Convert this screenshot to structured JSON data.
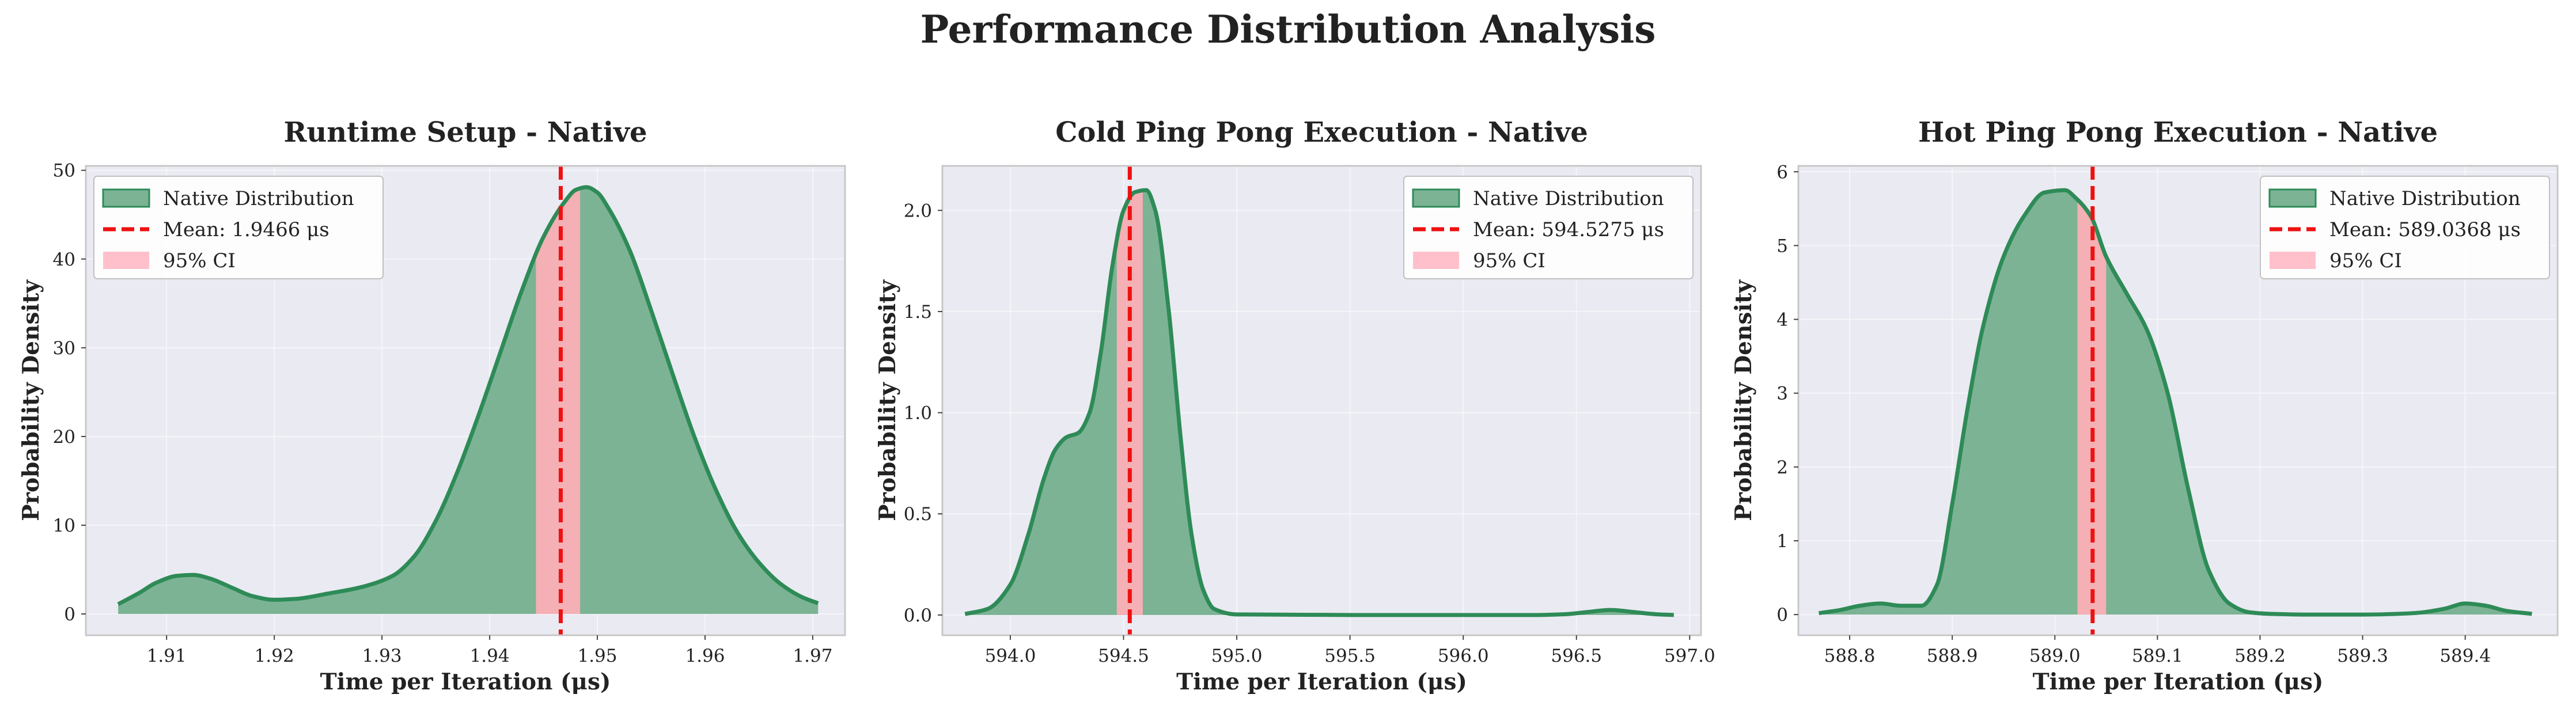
{
  "figure": {
    "title": "Performance Distribution Analysis",
    "colors": {
      "background": "#ffffff",
      "plot_background": "#eaeaf2",
      "grid": "#f5f5fa",
      "frame": "#c8c8c8",
      "text": "#222222",
      "density_fill": "#7cb395",
      "density_line": "#2e8b57",
      "mean_line": "#ee1111",
      "ci_fill": "#f4b0b4",
      "ci_legend": "#ffc0cb",
      "legend_bg": "#ffffff",
      "legend_border": "#c0c0c0"
    }
  },
  "chart_data": [
    {
      "type": "area",
      "title": "Runtime Setup - Native",
      "xlabel": "Time per Iteration (μs)",
      "ylabel": "Probability Density",
      "xlim": [
        1.9025,
        1.973
      ],
      "ylim": [
        -2.4,
        50.5
      ],
      "xticks": [
        1.91,
        1.92,
        1.93,
        1.94,
        1.95,
        1.96,
        1.97
      ],
      "xtick_labels": [
        "1.91",
        "1.92",
        "1.93",
        "1.94",
        "1.95",
        "1.96",
        "1.97"
      ],
      "yticks": [
        0,
        10,
        20,
        30,
        40,
        50
      ],
      "ytick_labels": [
        "0",
        "10",
        "20",
        "30",
        "40",
        "50"
      ],
      "grid": true,
      "legend_position": "upper left",
      "legend": [
        "Native Distribution",
        "Mean: 1.9466 μs",
        "95% CI"
      ],
      "mean": 1.9466,
      "ci": [
        1.9443,
        1.9484
      ],
      "series": [
        {
          "name": "Native Distribution",
          "x": [
            1.9055,
            1.9075,
            1.909,
            1.911,
            1.9125,
            1.914,
            1.916,
            1.918,
            1.92,
            1.922,
            1.925,
            1.928,
            1.931,
            1.933,
            1.935,
            1.937,
            1.939,
            1.941,
            1.943,
            1.945,
            1.947,
            1.948,
            1.949,
            1.95,
            1.951,
            1.953,
            1.955,
            1.957,
            1.959,
            1.961,
            1.963,
            1.965,
            1.967,
            1.969,
            1.9705
          ],
          "y": [
            1.1,
            2.4,
            3.5,
            4.3,
            4.4,
            4.0,
            3.0,
            2.0,
            1.6,
            1.7,
            2.3,
            3.0,
            4.3,
            6.5,
            10.5,
            16.0,
            22.5,
            29.5,
            36.5,
            42.5,
            46.5,
            47.8,
            48.1,
            47.5,
            45.8,
            41.0,
            34.2,
            27.0,
            20.0,
            14.0,
            9.2,
            5.8,
            3.4,
            1.9,
            1.2
          ]
        }
      ]
    },
    {
      "type": "area",
      "title": "Cold Ping Pong Execution - Native",
      "xlabel": "Time per Iteration (μs)",
      "ylabel": "Probability Density",
      "xlim": [
        593.7,
        597.05
      ],
      "ylim": [
        -0.1,
        2.22
      ],
      "xticks": [
        594.0,
        594.5,
        595.0,
        595.5,
        596.0,
        596.5,
        597.0
      ],
      "xtick_labels": [
        "594.0",
        "594.5",
        "595.0",
        "595.5",
        "596.0",
        "596.5",
        "597.0"
      ],
      "yticks": [
        0.0,
        0.5,
        1.0,
        1.5,
        2.0
      ],
      "ytick_labels": [
        "0.0",
        "0.5",
        "1.0",
        "1.5",
        "2.0"
      ],
      "grid": true,
      "legend_position": "upper right",
      "legend": [
        "Native Distribution",
        "Mean: 594.5275 μs",
        "95% CI"
      ],
      "mean": 594.5275,
      "ci": [
        594.47,
        594.585
      ],
      "series": [
        {
          "name": "Native Distribution",
          "x": [
            593.8,
            593.9,
            594.0,
            594.08,
            594.15,
            594.2,
            594.25,
            594.3,
            594.35,
            594.4,
            594.45,
            594.5,
            594.55,
            594.6,
            594.64,
            594.7,
            594.75,
            594.8,
            594.85,
            594.9,
            595.0,
            595.5,
            596.0,
            596.3,
            596.45,
            596.55,
            596.65,
            596.75,
            596.85,
            596.93
          ],
          "y": [
            0.005,
            0.03,
            0.15,
            0.4,
            0.68,
            0.82,
            0.88,
            0.9,
            1.0,
            1.3,
            1.72,
            2.0,
            2.09,
            2.1,
            2.0,
            1.5,
            0.9,
            0.4,
            0.13,
            0.03,
            0.003,
            0.0,
            0.0,
            0.0,
            0.004,
            0.015,
            0.025,
            0.015,
            0.004,
            0.0
          ]
        }
      ]
    },
    {
      "type": "area",
      "title": "Hot Ping Pong Execution - Native",
      "xlabel": "Time per Iteration (μs)",
      "ylabel": "Probability Density",
      "xlim": [
        588.75,
        589.49
      ],
      "ylim": [
        -0.28,
        6.08
      ],
      "xticks": [
        588.8,
        588.9,
        589.0,
        589.1,
        589.2,
        589.3,
        589.4
      ],
      "xtick_labels": [
        "588.8",
        "588.9",
        "589.0",
        "589.1",
        "589.2",
        "589.3",
        "589.4"
      ],
      "yticks": [
        0,
        1,
        2,
        3,
        4,
        5,
        6
      ],
      "ytick_labels": [
        "0",
        "1",
        "2",
        "3",
        "4",
        "5",
        "6"
      ],
      "grid": true,
      "legend_position": "upper right",
      "legend": [
        "Native Distribution",
        "Mean: 589.0368 μs",
        "95% CI"
      ],
      "mean": 589.0368,
      "ci": [
        589.022,
        589.05
      ],
      "series": [
        {
          "name": "Native Distribution",
          "x": [
            588.77,
            588.79,
            588.81,
            588.83,
            588.85,
            588.87,
            588.885,
            588.9,
            588.915,
            588.93,
            588.95,
            588.97,
            588.99,
            589.01,
            589.02,
            589.035,
            589.05,
            589.07,
            589.09,
            589.11,
            589.13,
            589.15,
            589.17,
            589.19,
            589.21,
            589.25,
            589.3,
            589.35,
            589.38,
            589.4,
            589.42,
            589.44,
            589.465
          ],
          "y": [
            0.02,
            0.06,
            0.12,
            0.15,
            0.12,
            0.12,
            0.4,
            1.5,
            2.8,
            3.9,
            4.85,
            5.4,
            5.72,
            5.75,
            5.65,
            5.4,
            4.85,
            4.35,
            3.85,
            3.0,
            1.7,
            0.6,
            0.15,
            0.03,
            0.01,
            0.0,
            0.0,
            0.02,
            0.08,
            0.15,
            0.12,
            0.05,
            0.01
          ]
        }
      ]
    }
  ]
}
